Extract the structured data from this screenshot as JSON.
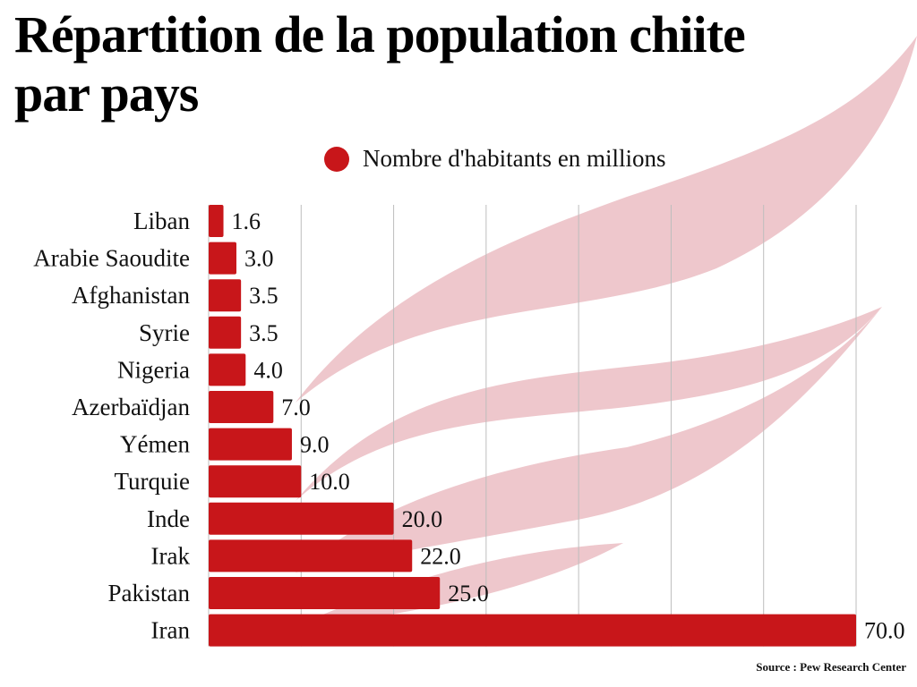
{
  "title": "Répartition  de la population chiite\npar pays",
  "legend": {
    "label": "Nombre d'habitants en millions",
    "color": "#c8161a",
    "icon": "circle-dot-icon"
  },
  "source": "Source : Pew Research Center",
  "colors": {
    "bar": "#c8161a",
    "watermark": "#eec7cc",
    "grid": "#bdbdbd"
  },
  "chart_data": {
    "type": "bar",
    "orientation": "horizontal",
    "title": "Répartition  de la population chiite par pays",
    "xlabel": "",
    "ylabel": "",
    "xlim": [
      0,
      70
    ],
    "grid": true,
    "grid_step": 10,
    "legend_position": "top-center",
    "series": [
      {
        "name": "Nombre d'habitants en millions",
        "values": [
          1.6,
          3.0,
          3.5,
          3.5,
          4.0,
          7.0,
          9.0,
          10.0,
          20.0,
          22.0,
          25.0,
          70.0
        ]
      }
    ],
    "categories": [
      "Liban",
      "Arabie Saoudite",
      "Afghanistan",
      "Syrie",
      "Nigeria",
      "Azerbaïdjan",
      "Yémen",
      "Turquie",
      "Inde",
      "Irak",
      "Pakistan",
      "Iran"
    ],
    "data_labels": [
      "1.6",
      "3.0",
      "3.5",
      "3.5",
      "4.0",
      "7.0",
      "9.0",
      "10.0",
      "20.0",
      "22.0",
      "25.0",
      "70.0"
    ]
  }
}
